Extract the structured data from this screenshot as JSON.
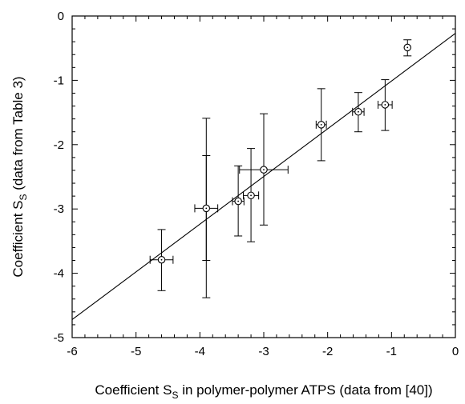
{
  "chart_data": {
    "type": "scatter",
    "title": "",
    "xlabel": {
      "main": "Coefficient S",
      "sub": "S",
      "rest": " in polymer-polymer ATPS (data from  [40])"
    },
    "ylabel": {
      "main": "Coefficient S",
      "sub": "S",
      "rest": " (data from Table 3)"
    },
    "xlim": [
      -6,
      0
    ],
    "ylim": [
      -5,
      0
    ],
    "xticks": [
      "-6",
      "-5",
      "-4",
      "-3",
      "-2",
      "-1",
      "0"
    ],
    "yticks": [
      "0",
      "-1",
      "-2",
      "-3",
      "-4",
      "-5"
    ],
    "grid": false,
    "legend": "none",
    "points": [
      {
        "x": -4.6,
        "y": -3.79,
        "xerr": 0.18,
        "yerr": [
          0.47,
          0.48
        ]
      },
      {
        "x": -3.9,
        "y": -2.99,
        "xerr": 0.18,
        "yerr": [
          1.4,
          1.39
        ],
        "yerr2": [
          0.82,
          0.81
        ]
      },
      {
        "x": -3.4,
        "y": -2.88,
        "xerr": 0.09,
        "yerr": [
          0.55,
          0.54
        ]
      },
      {
        "x": -3.2,
        "y": -2.79,
        "xerr": 0.12,
        "yerr": [
          0.73,
          0.72
        ]
      },
      {
        "x": -3.0,
        "y": -2.39,
        "xerr": 0.38,
        "yerr": [
          0.87,
          0.86
        ]
      },
      {
        "x": -2.1,
        "y": -1.69,
        "xerr": 0.08,
        "yerr": [
          0.56,
          0.56
        ]
      },
      {
        "x": -1.52,
        "y": -1.49,
        "xerr": 0.09,
        "yerr": [
          0.3,
          0.31
        ]
      },
      {
        "x": -1.1,
        "y": -1.38,
        "xerr": 0.11,
        "yerr": [
          0.39,
          0.4
        ]
      },
      {
        "x": -0.75,
        "y": -0.49,
        "xerr": 0.0,
        "yerr": [
          0.12,
          0.13
        ]
      }
    ],
    "fit_line": {
      "x": [
        -6,
        0
      ],
      "y": [
        -4.72,
        -0.27
      ]
    }
  }
}
